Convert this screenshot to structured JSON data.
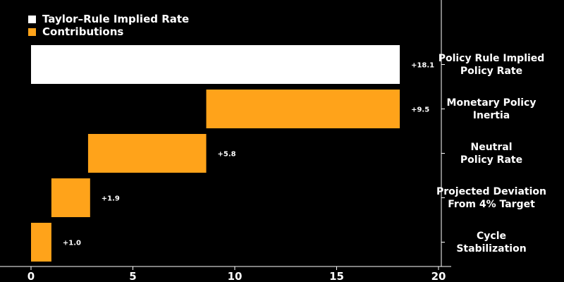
{
  "legend": {
    "items": [
      {
        "label": "Taylor–Rule Implied Rate",
        "color": "#ffffff"
      },
      {
        "label": "Contributions",
        "color": "#ffa31a"
      }
    ]
  },
  "chart_data": {
    "type": "bar",
    "orientation": "horizontal-waterfall",
    "categories": [
      "Policy Rule Implied Policy Rate",
      "Monetary Policy Inertia",
      "Neutral Policy Rate",
      "Projected Deviation From 4% Target",
      "Cycle Stabilization"
    ],
    "category_lines": [
      [
        "Policy Rule Implied",
        "Policy Rate"
      ],
      [
        "Monetary Policy",
        "Inertia"
      ],
      [
        "Neutral",
        "Policy Rate"
      ],
      [
        "Projected Deviation",
        "From 4% Target"
      ],
      [
        "Cycle",
        "Stabilization"
      ]
    ],
    "values": [
      18.1,
      9.5,
      5.8,
      1.9,
      1.0
    ],
    "bar_start": [
      0,
      8.6,
      2.8,
      1.0,
      0
    ],
    "bar_end": [
      18.1,
      18.1,
      8.6,
      2.9,
      1.0
    ],
    "value_labels": [
      "+18.1",
      "+9.5",
      "+5.8",
      "+1.9",
      "+1.0"
    ],
    "series_type": [
      "total",
      "contribution",
      "contribution",
      "contribution",
      "contribution"
    ],
    "colors": {
      "total": "#ffffff",
      "contribution": "#ffa31a",
      "background": "#000000",
      "axis": "#ffffff"
    },
    "xlim": [
      0,
      20
    ],
    "xticks": [
      "0",
      "5",
      "10",
      "15",
      "20"
    ],
    "grid": false,
    "legend_position": "top-left"
  }
}
